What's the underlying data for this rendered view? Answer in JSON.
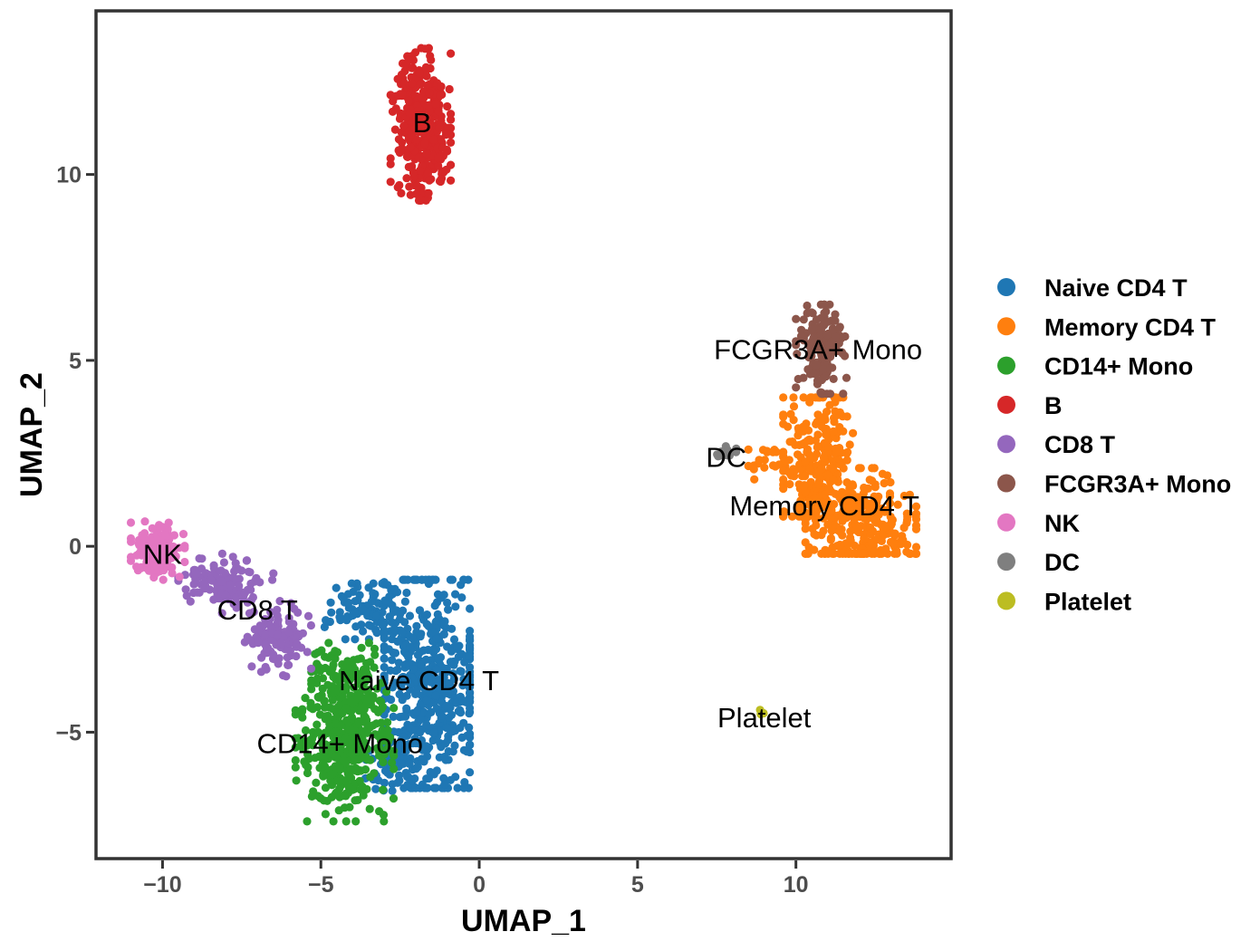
{
  "chart_data": {
    "type": "scatter",
    "title": "",
    "xlabel": "UMAP_1",
    "ylabel": "UMAP_2",
    "xlim": [
      -12.1,
      14.9
    ],
    "ylim": [
      -8.4,
      14.4
    ],
    "xticks": [
      {
        "value": -10,
        "label": "−10"
      },
      {
        "value": -5,
        "label": "−5"
      },
      {
        "value": 0,
        "label": "0"
      },
      {
        "value": 5,
        "label": "5"
      },
      {
        "value": 10,
        "label": "10"
      }
    ],
    "yticks": [
      {
        "value": -5,
        "label": "−5"
      },
      {
        "value": 0,
        "label": "0"
      },
      {
        "value": 5,
        "label": "5"
      },
      {
        "value": 10,
        "label": "10"
      }
    ],
    "grid": false,
    "legend_position": "right",
    "series": [
      {
        "name": "Naive CD4 T",
        "color": "#1F77B4",
        "clusters": [
          {
            "cx": -1.6,
            "cy": -3.8,
            "sx": 0.85,
            "sy": 1.55,
            "n": 520,
            "xr": [
              -3.0,
              -0.3
            ],
            "yr": [
              -6.5,
              -0.9
            ]
          },
          {
            "cx": -3.6,
            "cy": -1.7,
            "sx": 0.6,
            "sy": 0.45,
            "n": 90,
            "xr": [
              -5.0,
              -2.5
            ],
            "yr": [
              -2.5,
              -1.0
            ]
          },
          {
            "cx": -3.0,
            "cy": -5.9,
            "sx": 0.4,
            "sy": 0.35,
            "n": 40,
            "xr": [
              -3.6,
              -2.2
            ],
            "yr": [
              -6.6,
              -5.0
            ]
          }
        ]
      },
      {
        "name": "Memory CD4 T",
        "color": "#FF7F0E",
        "clusters": [
          {
            "cx": 10.7,
            "cy": 2.3,
            "sx": 0.6,
            "sy": 1.0,
            "n": 260,
            "xr": [
              9.6,
              11.8
            ],
            "yr": [
              0.8,
              4.0
            ]
          },
          {
            "cx": 12.0,
            "cy": 0.6,
            "sx": 0.9,
            "sy": 0.75,
            "n": 280,
            "xr": [
              10.3,
              13.8
            ],
            "yr": [
              -0.2,
              2.1
            ]
          },
          {
            "cx": 9.2,
            "cy": 2.2,
            "sx": 0.45,
            "sy": 0.3,
            "n": 20,
            "xr": [
              8.5,
              9.8
            ],
            "yr": [
              1.8,
              2.6
            ]
          }
        ]
      },
      {
        "name": "CD14+ Mono",
        "color": "#2CA02C",
        "clusters": [
          {
            "cx": -4.2,
            "cy": -5.2,
            "sx": 0.7,
            "sy": 1.0,
            "n": 430,
            "xr": [
              -5.8,
              -2.7
            ],
            "yr": [
              -7.4,
              -2.8
            ]
          },
          {
            "cx": -4.3,
            "cy": -3.4,
            "sx": 0.5,
            "sy": 0.4,
            "n": 50,
            "xr": [
              -5.3,
              -3.3
            ],
            "yr": [
              -4.2,
              -2.6
            ]
          }
        ]
      },
      {
        "name": "B",
        "color": "#D62728",
        "clusters": [
          {
            "cx": -1.8,
            "cy": 11.3,
            "sx": 0.4,
            "sy": 0.9,
            "n": 420,
            "xr": [
              -2.8,
              -0.9
            ],
            "yr": [
              9.3,
              13.4
            ]
          }
        ]
      },
      {
        "name": "CD8 T",
        "color": "#9467BD",
        "clusters": [
          {
            "cx": -8.0,
            "cy": -1.0,
            "sx": 0.7,
            "sy": 0.35,
            "n": 110,
            "xr": [
              -9.5,
              -6.5
            ],
            "yr": [
              -1.8,
              -0.2
            ]
          },
          {
            "cx": -6.4,
            "cy": -2.4,
            "sx": 0.5,
            "sy": 0.45,
            "n": 110,
            "xr": [
              -7.4,
              -5.3
            ],
            "yr": [
              -3.5,
              -1.4
            ]
          }
        ]
      },
      {
        "name": "FCGR3A+ Mono",
        "color": "#8C564B",
        "clusters": [
          {
            "cx": 10.8,
            "cy": 5.3,
            "sx": 0.35,
            "sy": 0.55,
            "n": 150,
            "xr": [
              10.0,
              11.7
            ],
            "yr": [
              4.1,
              6.5
            ]
          }
        ]
      },
      {
        "name": "NK",
        "color": "#E377C2",
        "clusters": [
          {
            "cx": -10.2,
            "cy": -0.1,
            "sx": 0.4,
            "sy": 0.3,
            "n": 170,
            "xr": [
              -11.0,
              -9.3
            ],
            "yr": [
              -0.9,
              0.7
            ]
          }
        ]
      },
      {
        "name": "DC",
        "color": "#7F7F7F",
        "clusters": [
          {
            "cx": 7.8,
            "cy": 2.5,
            "sx": 0.2,
            "sy": 0.08,
            "n": 14,
            "xr": [
              7.4,
              8.3
            ],
            "yr": [
              2.3,
              2.7
            ]
          }
        ]
      },
      {
        "name": "Platelet",
        "color": "#BCBD22",
        "clusters": [
          {
            "cx": 8.9,
            "cy": -4.5,
            "sx": 0.05,
            "sy": 0.05,
            "n": 3,
            "xr": [
              8.8,
              9.0
            ],
            "yr": [
              -4.6,
              -4.4
            ]
          }
        ]
      }
    ],
    "annotations": [
      {
        "text": "B",
        "x": -1.8,
        "y": 11.4
      },
      {
        "text": "FCGR3A+ Mono",
        "x": 10.7,
        "y": 5.3
      },
      {
        "text": "DC",
        "x": 7.8,
        "y": 2.4
      },
      {
        "text": "Memory CD4 T",
        "x": 10.9,
        "y": 1.1
      },
      {
        "text": "NK",
        "x": -10.0,
        "y": -0.2
      },
      {
        "text": "CD8 T",
        "x": -7.0,
        "y": -1.7
      },
      {
        "text": "Naive CD4 T",
        "x": -1.9,
        "y": -3.6
      },
      {
        "text": "CD14+ Mono",
        "x": -4.4,
        "y": -5.3
      },
      {
        "text": "Platelet",
        "x": 9.0,
        "y": -4.6
      }
    ]
  }
}
